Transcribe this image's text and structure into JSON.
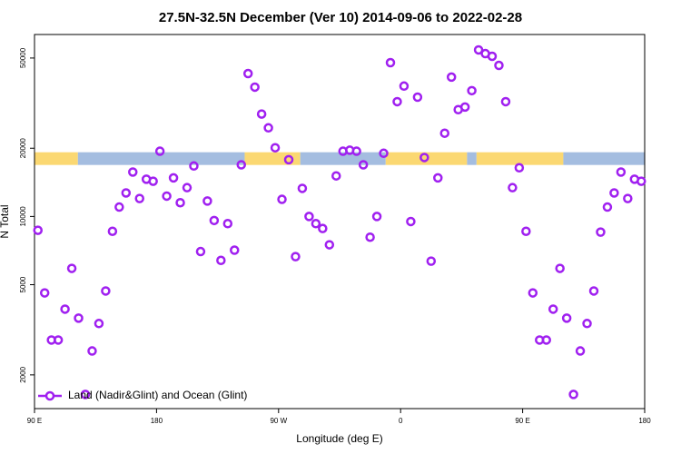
{
  "chart_data": {
    "type": "scatter",
    "title": "27.5N-32.5N December (Ver 10)   2014-09-06 to 2022-02-28",
    "x_label": "Longitude (deg E)",
    "y_label": "N Total",
    "log_y": true,
    "xlim": [
      90,
      540
    ],
    "xticks": [
      {
        "value": 90,
        "label": "90 E"
      },
      180,
      {
        "value": 270,
        "label": "90 W"
      },
      {
        "value": 360,
        "label": "0"
      },
      {
        "value": 450,
        "label": "90 E"
      },
      {
        "value": 540,
        "label": "180"
      }
    ],
    "ylim": [
      1420,
      63500
    ],
    "yticks": [
      2000,
      5000,
      10000,
      20000,
      50000
    ],
    "legend": "bottom-left",
    "band": {
      "y": 18000,
      "segments": [
        {
          "xlim": [
            90,
            122
          ],
          "color": "#fbd872"
        },
        {
          "xlim": [
            122,
            245
          ],
          "color": "#a4bde0"
        },
        {
          "xlim": [
            245,
            286
          ],
          "color": "#fbd872"
        },
        {
          "xlim": [
            286,
            349
          ],
          "color": "#a4bde0"
        },
        {
          "xlim": [
            349,
            409
          ],
          "color": "#fbd872"
        },
        {
          "xlim": [
            409,
            416
          ],
          "color": "#a4bde0"
        },
        {
          "xlim": [
            416,
            480
          ],
          "color": "#fbd872"
        },
        {
          "xlim": [
            480,
            540
          ],
          "color": "#a4bde0"
        }
      ]
    },
    "x": [
      92.5,
      97.5,
      102.5,
      107.5,
      112.5,
      117.5,
      122.5,
      127.5,
      132.5,
      137.5,
      142.5,
      147.5,
      152.5,
      157.5,
      162.5,
      167.5,
      172.5,
      177.5,
      182.5,
      187.5,
      192.5,
      197.5,
      202.5,
      207.5,
      212.5,
      217.5,
      222.5,
      227.5,
      232.5,
      237.5,
      242.5,
      247.5,
      252.5,
      257.5,
      262.5,
      267.5,
      272.5,
      277.5,
      282.5,
      287.5,
      292.5,
      297.5,
      302.5,
      307.5,
      312.5,
      317.5,
      322.5,
      327.5,
      332.5,
      337.5,
      342.5,
      347.5,
      352.5,
      357.5,
      362.5,
      367.5,
      372.5,
      377.5,
      382.5,
      387.5,
      392.5,
      397.5,
      402.5,
      407.5,
      412.5,
      417.5,
      422.5,
      427.5,
      432.5,
      437.5,
      442.5,
      447.5,
      452.5,
      457.5,
      462.5,
      467.5,
      472.5,
      477.5,
      482.5,
      487.5,
      492.5,
      497.5,
      502.5,
      507.5,
      512.5,
      517.5,
      522.5,
      527.5,
      532.5,
      537.5
    ],
    "series": [
      {
        "name": "Land (Nadir&Glint) and Ocean (Glint)",
        "color": "#a020f0",
        "values": [
          8690,
          4600,
          2850,
          2850,
          3900,
          5900,
          3560,
          1640,
          2550,
          3370,
          4690,
          8600,
          11000,
          12700,
          15700,
          12000,
          14600,
          14300,
          19400,
          12300,
          14800,
          11500,
          13400,
          16700,
          7000,
          11700,
          9600,
          6400,
          9300,
          7100,
          16900,
          42700,
          37200,
          28300,
          24600,
          20100,
          11900,
          17800,
          6650,
          13300,
          10000,
          9300,
          8850,
          7500,
          15100,
          19400,
          19600,
          19400,
          16900,
          8100,
          10000,
          19000,
          47700,
          32100,
          37600,
          9500,
          33600,
          18200,
          6350,
          14800,
          23300,
          41200,
          29600,
          30400,
          35900,
          54300,
          52300,
          50900,
          46400,
          32100,
          13400,
          16400,
          8600,
          4600,
          2850,
          2850,
          3900,
          5900,
          3560,
          1640,
          2550,
          3370,
          4690,
          8530,
          11000,
          12700,
          15700,
          12000,
          14600,
          14300
        ]
      }
    ]
  }
}
